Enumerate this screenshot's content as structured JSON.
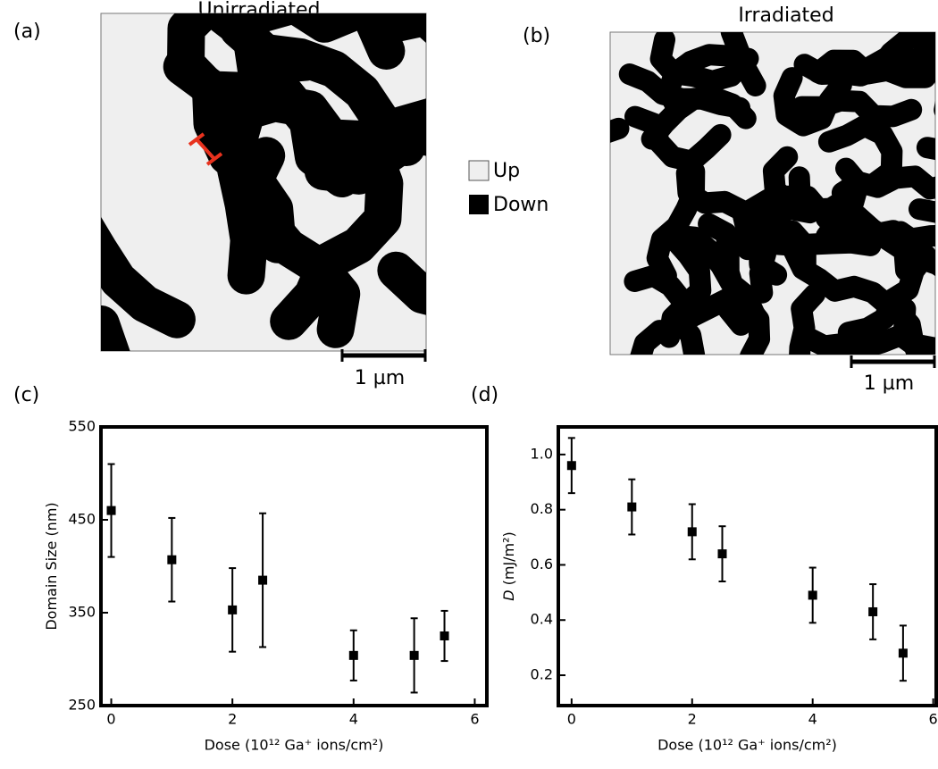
{
  "images": [
    {
      "panel_label": "(a)",
      "title": "Unirradiated",
      "scale_bar": "1 µm"
    },
    {
      "panel_label": "(b)",
      "title": "Irradiated",
      "scale_bar": "1 µm"
    }
  ],
  "legend": {
    "items": [
      "Up",
      "Down"
    ]
  },
  "chart_data": [
    {
      "type": "scatter",
      "panel_label": "(c)",
      "xlabel": "Dose (10¹² Ga⁺ ions/cm²)",
      "ylabel": "Domain Size (nm)",
      "x": [
        0,
        1,
        2,
        2.5,
        4,
        5,
        5.5
      ],
      "values": [
        460,
        407,
        353,
        385,
        304,
        304,
        325
      ],
      "errors": [
        50,
        45,
        45,
        72,
        27,
        40,
        27
      ],
      "color": "#000000",
      "xlim": [
        -0.17,
        6.2
      ],
      "ylim": [
        250,
        550
      ],
      "xticks": [
        0,
        2,
        4,
        6
      ],
      "yticks": [
        250,
        350,
        450,
        550
      ]
    },
    {
      "type": "scatter",
      "panel_label": "(d)",
      "xlabel": "Dose (10¹² Ga⁺ ions/cm²)",
      "ylabel_symbol": "D",
      "ylabel": "(mJ/m²)",
      "x": [
        0,
        1,
        2,
        2.5,
        4,
        5,
        5.5
      ],
      "values": [
        0.96,
        0.81,
        0.72,
        0.64,
        0.49,
        0.43,
        0.28
      ],
      "errors": [
        0.1,
        0.1,
        0.1,
        0.1,
        0.1,
        0.1,
        0.1
      ],
      "color": "#000000",
      "xlim": [
        -0.22,
        6.05
      ],
      "ylim": [
        0.09,
        1.1
      ],
      "xticks": [
        0,
        2,
        4,
        6
      ],
      "yticks": [
        0.2,
        0.4,
        0.6,
        0.8,
        {
          "value": 1,
          "label": "1.0"
        }
      ]
    }
  ]
}
